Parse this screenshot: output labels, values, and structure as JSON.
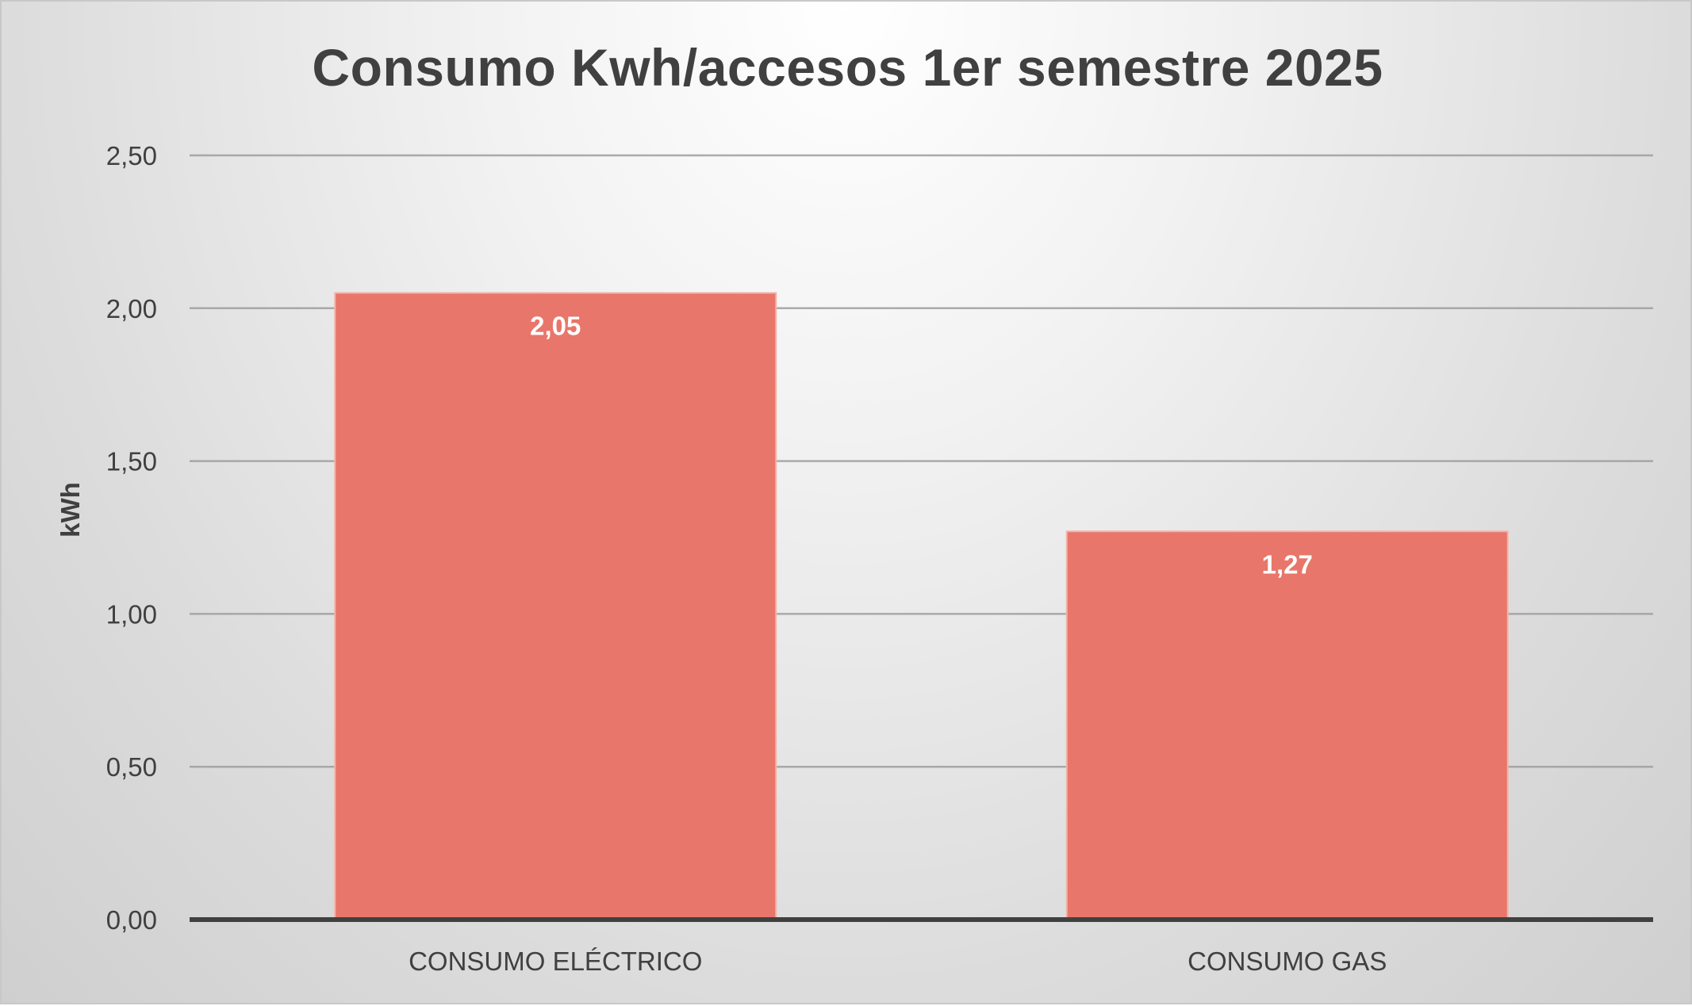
{
  "chart_data": {
    "type": "bar",
    "title": "Consumo Kwh/accesos 1er semestre 2025",
    "ylabel": "kWh",
    "xlabel": "",
    "categories": [
      "CONSUMO ELÉCTRICO",
      "CONSUMO GAS"
    ],
    "values": [
      2.05,
      1.27
    ],
    "data_labels": [
      "2,05",
      "1,27"
    ],
    "ylim": [
      0,
      2.5
    ],
    "yticks": [
      0,
      0.5,
      1.0,
      1.5,
      2.0,
      2.5
    ],
    "ytick_labels": [
      "0,00",
      "0,50",
      "1,00",
      "1,50",
      "2,00",
      "2,50"
    ],
    "grid": true,
    "legend": "none",
    "colors": {
      "bar": "#e8766a",
      "bar_edge": "#f3b3ab",
      "grid": "#9e9e9e",
      "axis": "#404040",
      "text": "#404040"
    }
  }
}
